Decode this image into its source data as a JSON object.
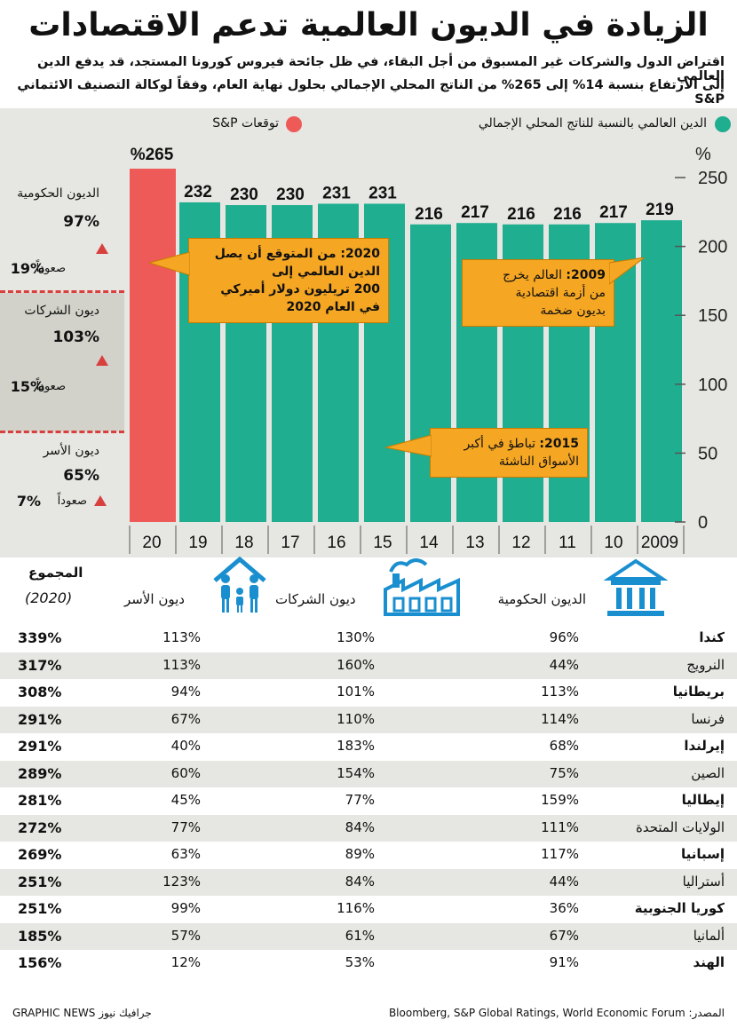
{
  "title": "الزيادة في الديون العالمية تدعم الاقتصادات",
  "subtitle": {
    "line1": "اقتراض الدول والشركات غير المسبوق من أجل البقاء، في ظل جائحة فيروس كورونا المستجد، قد يدفع الدين العالمي",
    "line2": "إلى الارتفاع بنسبة 14% إلى 265% من الناتج المحلي الإجمالي بحلول نهاية العام، وفقاً لوكالة التصنيف الائتماني S&P"
  },
  "legend": {
    "green": "الدين العالمي بالنسبة للناتج المحلي الإجمالي",
    "red": "توقعات S&P"
  },
  "colors": {
    "green": "#1fae8f",
    "red": "#ee5a57",
    "orange": "#f5a623",
    "gray": "#e6e6e2"
  },
  "chart_data": {
    "type": "bar",
    "categories": [
      "2009",
      "10",
      "11",
      "12",
      "13",
      "14",
      "15",
      "16",
      "17",
      "18",
      "19",
      "20"
    ],
    "values": [
      219,
      217,
      216,
      216,
      217,
      216,
      231,
      231,
      230,
      230,
      232,
      265
    ],
    "value_labels": [
      "219",
      "217",
      "216",
      "216",
      "217",
      "216",
      "231",
      "231",
      "230",
      "230",
      "232",
      "%265"
    ],
    "forecast_index": 11,
    "ylim": [
      0,
      250
    ],
    "yticks": [
      0,
      50,
      100,
      150,
      200,
      250
    ],
    "ylabel": "%",
    "title": "الدين العالمي بالنسبة للناتج المحلي الإجمالي"
  },
  "breakdown": [
    {
      "label": "الديون الحكومية",
      "pct": "97%",
      "change": "19%",
      "change_label": "صعوداً"
    },
    {
      "label": "ديون الشركات",
      "pct": "103%",
      "change": "15%",
      "change_label": "صعوداً"
    },
    {
      "label": "ديون الأسر",
      "pct": "65%",
      "change": "7%",
      "change_label": "صعوداً"
    }
  ],
  "callouts": {
    "c2020_year": "2020:",
    "c2020_text1": " من المتوقع أن يصل",
    "c2020_text2": "الدين العالمي إلى",
    "c2020_text3": "200 تريليون دولار أميركي",
    "c2020_text4": "في العام 2020",
    "c2009_year": "2009:",
    "c2009_text1": " العالم يخرج",
    "c2009_text2": "من أزمة اقتصادية",
    "c2009_text3": "بديون ضخمة",
    "c2015_year": "2015:",
    "c2015_text1": " تباطؤ في أكبر",
    "c2015_text2": "الأسواق الناشئة"
  },
  "table": {
    "headers": {
      "gov": "الديون الحكومية",
      "corp": "ديون الشركات",
      "hh": "ديون الأسر",
      "total": "المجموع",
      "total_year": "(2020)"
    },
    "rows": [
      {
        "country": "كندا",
        "gov": "96%",
        "corp": "130%",
        "hh": "113%",
        "total": "339%",
        "bold": true
      },
      {
        "country": "النرويج",
        "gov": "44%",
        "corp": "160%",
        "hh": "113%",
        "total": "317%",
        "bold": false
      },
      {
        "country": "بريطانيا",
        "gov": "113%",
        "corp": "101%",
        "hh": "94%",
        "total": "308%",
        "bold": true
      },
      {
        "country": "فرنسا",
        "gov": "114%",
        "corp": "110%",
        "hh": "67%",
        "total": "291%",
        "bold": false
      },
      {
        "country": "إيرلندا",
        "gov": "68%",
        "corp": "183%",
        "hh": "40%",
        "total": "291%",
        "bold": true
      },
      {
        "country": "الصين",
        "gov": "75%",
        "corp": "154%",
        "hh": "60%",
        "total": "289%",
        "bold": false
      },
      {
        "country": "إيطاليا",
        "gov": "159%",
        "corp": "77%",
        "hh": "45%",
        "total": "281%",
        "bold": true
      },
      {
        "country": "الولايات المتحدة",
        "gov": "111%",
        "corp": "84%",
        "hh": "77%",
        "total": "272%",
        "bold": false
      },
      {
        "country": "إسبانيا",
        "gov": "117%",
        "corp": "89%",
        "hh": "63%",
        "total": "269%",
        "bold": true
      },
      {
        "country": "أستراليا",
        "gov": "44%",
        "corp": "84%",
        "hh": "123%",
        "total": "251%",
        "bold": false
      },
      {
        "country": "كوريا الجنوبية",
        "gov": "36%",
        "corp": "116%",
        "hh": "99%",
        "total": "251%",
        "bold": true
      },
      {
        "country": "ألمانيا",
        "gov": "67%",
        "corp": "61%",
        "hh": "57%",
        "total": "185%",
        "bold": false
      },
      {
        "country": "الهند",
        "gov": "91%",
        "corp": "53%",
        "hh": "12%",
        "total": "156%",
        "bold": true
      }
    ]
  },
  "footer": {
    "source": "المصدر: Bloomberg, S&P Global Ratings, World Economic Forum",
    "credit": "GRAPHIC NEWS جرافيك نيوز"
  }
}
